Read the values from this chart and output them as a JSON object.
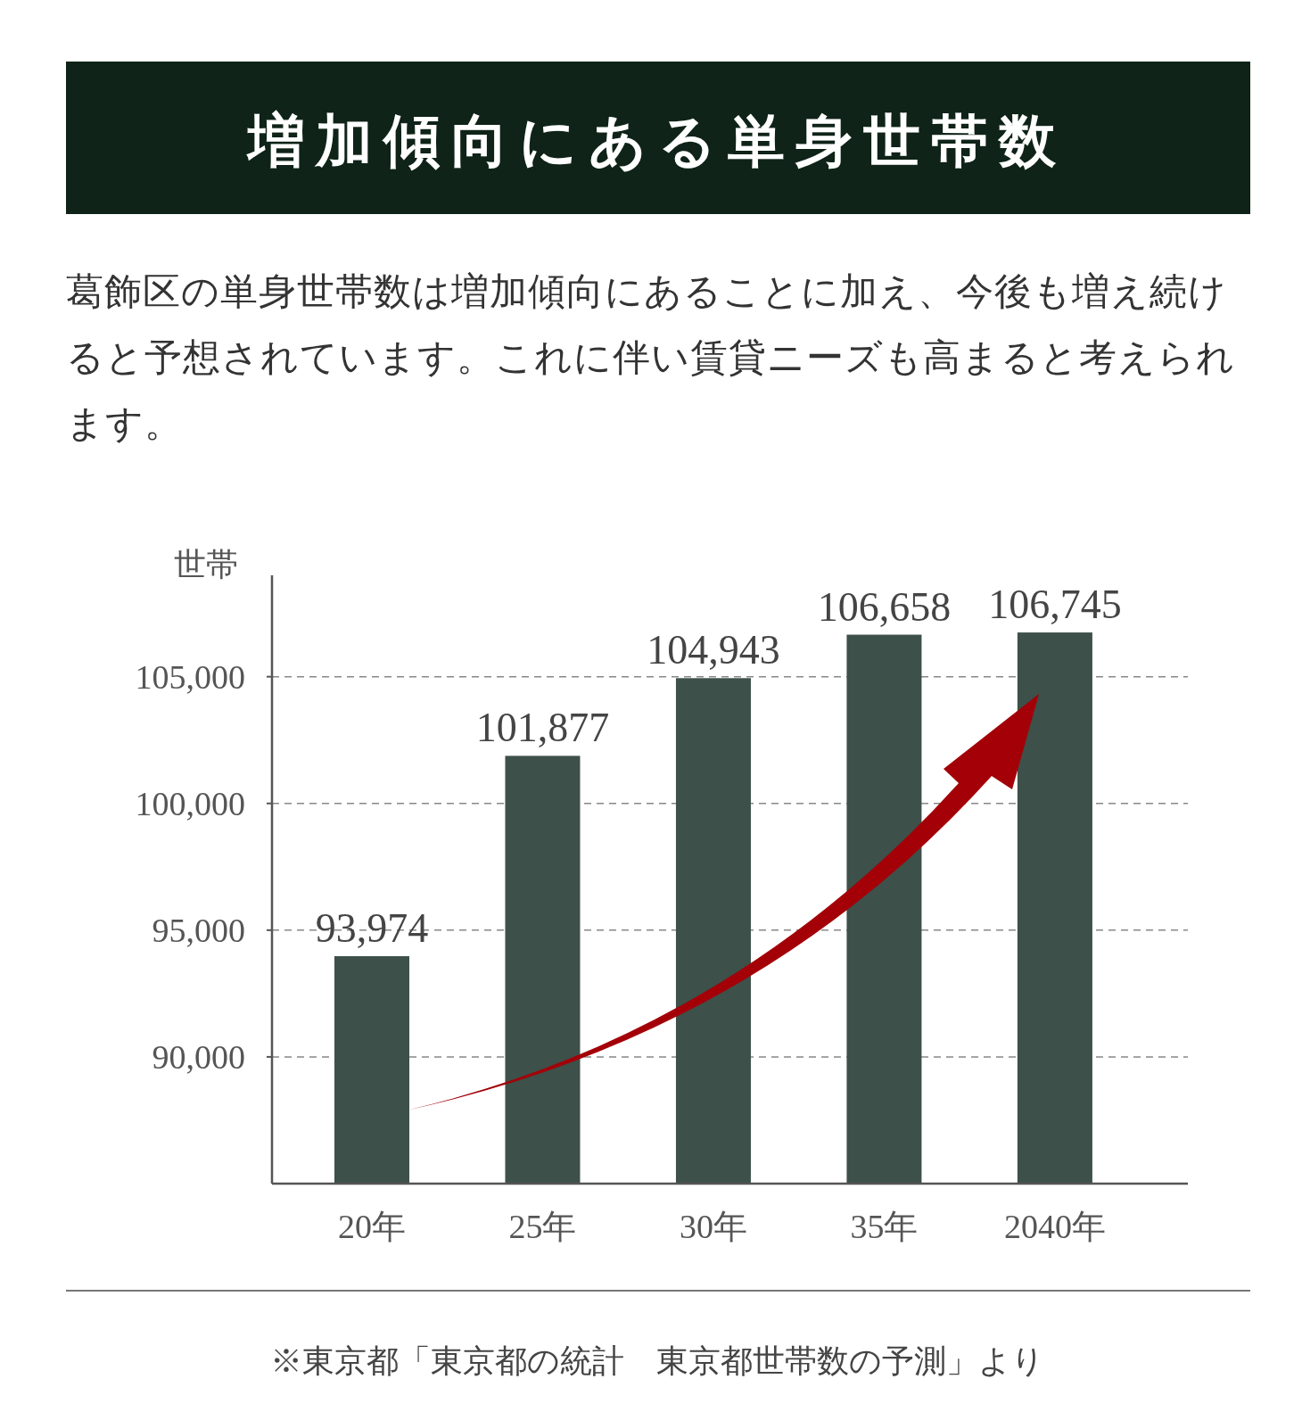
{
  "chart_data": {
    "type": "bar",
    "title": "増加傾向にある単身世帯数",
    "subtitle": "葛飾区の単身世帯数は増加傾向にあることに加え、今後も増え続けると予想されています。これに伴い賃貸ニーズも高まると考えられます。",
    "ylabel": "世帯",
    "categories": [
      "20年",
      "25年",
      "30年",
      "35年",
      "2040年"
    ],
    "values": [
      93974,
      101877,
      104943,
      106658,
      106745
    ],
    "color": "#3d5049",
    "ylim": [
      85000,
      109000
    ],
    "yticks": [
      {
        "value": 90000,
        "label": "90,000"
      },
      {
        "value": 95000,
        "label": "95,000"
      },
      {
        "value": 100000,
        "label": "100,000"
      },
      {
        "value": 105000,
        "label": "105,000"
      }
    ],
    "value_labels": [
      "93,974",
      "101,877",
      "104,943",
      "106,658",
      "106,745"
    ],
    "grid": "y",
    "annotations": [
      "※東京都「東京都の統計　東京都世帯数の予測」より"
    ]
  }
}
